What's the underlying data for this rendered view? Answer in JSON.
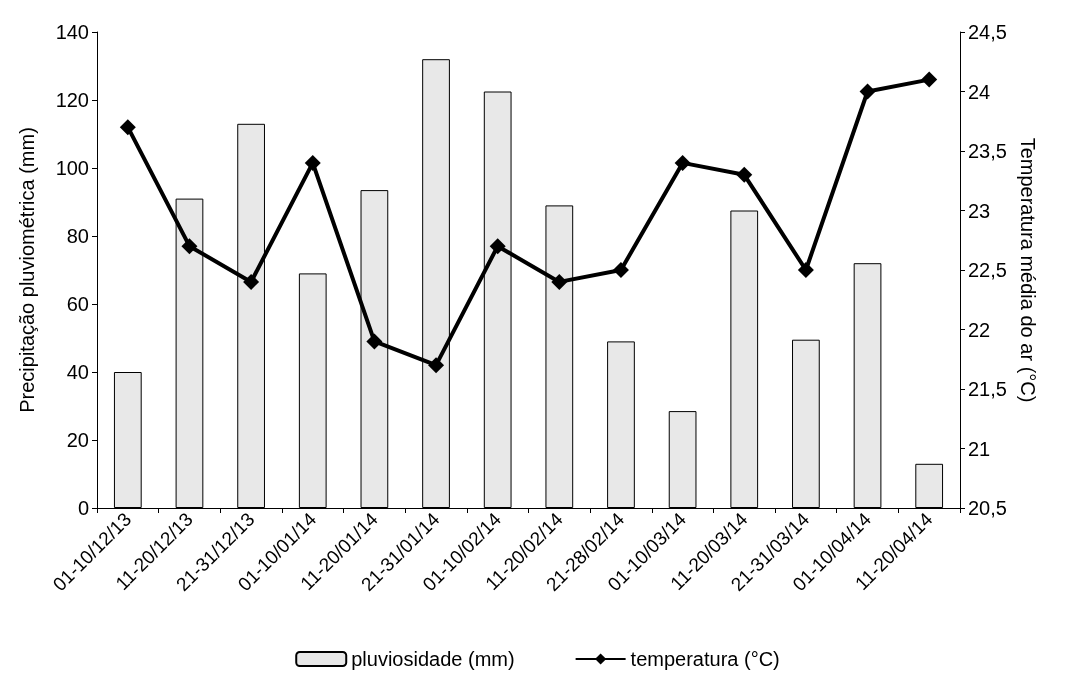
{
  "chart_data": {
    "type": "bar",
    "ylabel": "Precipitação pluviométrica (mm)",
    "y2label": "Temperatura média do ar (°C)",
    "categories": [
      "01-10/12/13",
      "11-20/12/13",
      "21-31/12/13",
      "01-10/01/14",
      "11-20/01/14",
      "21-31/01/14",
      "01-10/02/14",
      "11-20/02/14",
      "21-28/02/14",
      "01-10/03/14",
      "11-20/03/14",
      "21-31/03/14",
      "01-10/04/14",
      "11-20/04/14"
    ],
    "series": [
      {
        "name": "pluviosidade (mm)",
        "color": "#e8e8e8",
        "values": [
          40,
          91,
          113,
          69,
          93.5,
          132,
          122.5,
          89,
          49,
          28.5,
          87.5,
          49.5,
          72,
          13
        ]
      },
      {
        "name": "temperatura (°C)",
        "type": "line",
        "axis": "y2",
        "color": "#000000",
        "marker": "diamond",
        "values": [
          23.7,
          22.7,
          22.4,
          23.4,
          21.9,
          21.7,
          22.7,
          22.4,
          22.5,
          23.4,
          23.3,
          22.5,
          24.0,
          24.1
        ]
      }
    ],
    "ylim": [
      0,
      140
    ],
    "yticks": [
      0,
      20,
      40,
      60,
      80,
      100,
      120,
      140
    ],
    "y2lim": [
      20.5,
      24.5
    ],
    "y2ticks": [
      {
        "value": 20.5,
        "label": "20,5"
      },
      21,
      {
        "value": 21.5,
        "label": "21,5"
      },
      22,
      {
        "value": 22.5,
        "label": "22,5"
      },
      23,
      {
        "value": 23.5,
        "label": "23,5"
      },
      24,
      {
        "value": 24.5,
        "label": "24,5"
      }
    ],
    "grid": false,
    "legend": "bottom"
  }
}
